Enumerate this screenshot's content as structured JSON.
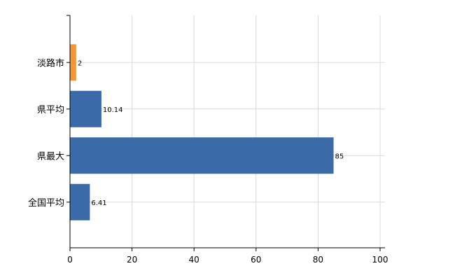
{
  "chart_data": {
    "type": "bar",
    "orientation": "horizontal",
    "categories": [
      "淡路市",
      "県平均",
      "県最大",
      "全国平均"
    ],
    "values": [
      2,
      10.14,
      85,
      6.41
    ],
    "value_labels": [
      "2",
      "10.14",
      "85",
      "6.41"
    ],
    "bar_colors": [
      "#f0963c",
      "#3a6aa8",
      "#3a6aa8",
      "#3a6aa8"
    ],
    "xlim": [
      0,
      100
    ],
    "xticks": [
      0,
      20,
      40,
      60,
      80,
      100
    ],
    "xtick_labels": [
      "0",
      "20",
      "40",
      "60",
      "80",
      "100"
    ],
    "grid": true,
    "title": "",
    "xlabel": "",
    "ylabel": ""
  }
}
